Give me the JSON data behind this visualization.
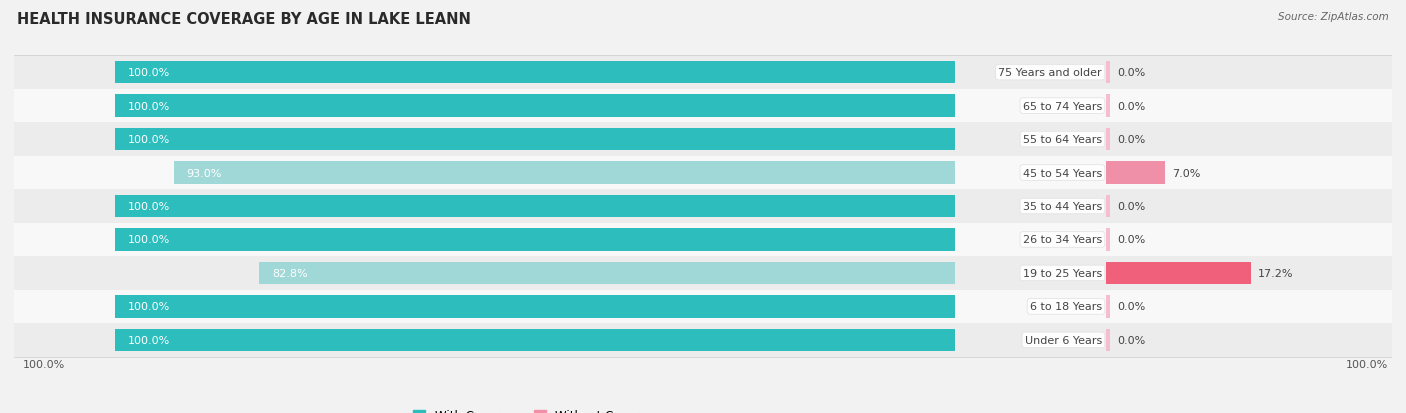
{
  "title": "HEALTH INSURANCE COVERAGE BY AGE IN LAKE LEANN",
  "source": "Source: ZipAtlas.com",
  "categories": [
    "Under 6 Years",
    "6 to 18 Years",
    "19 to 25 Years",
    "26 to 34 Years",
    "35 to 44 Years",
    "45 to 54 Years",
    "55 to 64 Years",
    "65 to 74 Years",
    "75 Years and older"
  ],
  "with_coverage": [
    100.0,
    100.0,
    82.8,
    100.0,
    100.0,
    93.0,
    100.0,
    100.0,
    100.0
  ],
  "without_coverage": [
    0.0,
    0.0,
    17.2,
    0.0,
    0.0,
    7.0,
    0.0,
    0.0,
    0.0
  ],
  "color_with_full": "#2dbdbd",
  "color_with_light": "#a0d8d8",
  "color_without_dark": "#f0607a",
  "color_without_mid": "#f090a8",
  "color_without_light": "#f5bece",
  "label_color_white": "#ffffff",
  "label_color_dark": "#444444",
  "title_fontsize": 10.5,
  "label_fontsize": 8,
  "tick_fontsize": 8,
  "legend_fontsize": 8.5,
  "source_fontsize": 7.5,
  "axis_label_left": "100.0%",
  "axis_label_right": "100.0%",
  "fig_bg": "#f2f2f2",
  "row_colors": [
    "#ececec",
    "#f8f8f8",
    "#ececec",
    "#f8f8f8",
    "#ececec",
    "#f8f8f8",
    "#ececec",
    "#f8f8f8",
    "#ececec"
  ]
}
